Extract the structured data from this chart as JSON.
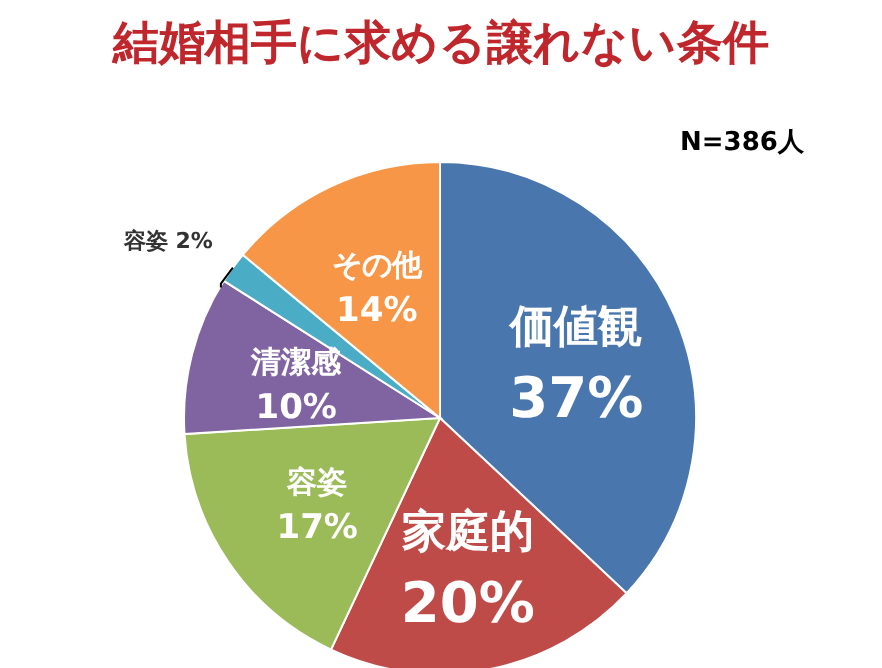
{
  "chart_data": {
    "type": "pie",
    "title": "結婚相手に求める譲れない条件",
    "categories": [
      "価値観",
      "家庭的",
      "容姿",
      "清潔感",
      "容姿",
      "その他"
    ],
    "values": [
      37,
      20,
      17,
      10,
      2,
      14
    ],
    "value_labels": [
      "37%",
      "20%",
      "17%",
      "10%",
      "2%",
      "14%"
    ],
    "colors": [
      "#4a76ae",
      "#be4b48",
      "#9bbb59",
      "#8064a2",
      "#4bacc6",
      "#f79646"
    ],
    "annotations": [
      "N=386人"
    ]
  }
}
